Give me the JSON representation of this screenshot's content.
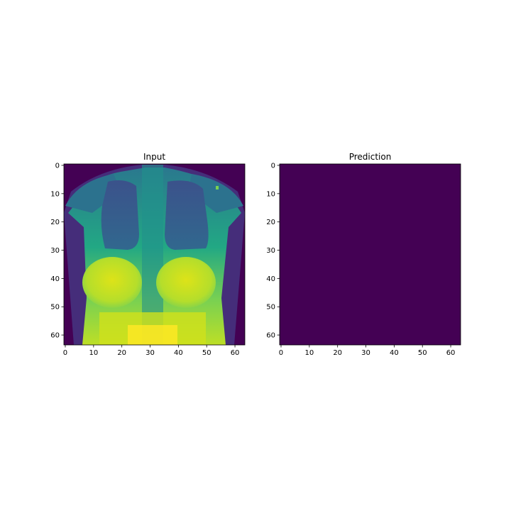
{
  "chart_data": [
    {
      "type": "heatmap",
      "title": "Input",
      "xlabel": "",
      "ylabel": "",
      "shape": [
        64,
        64
      ],
      "xlim": [
        -0.5,
        63.5
      ],
      "ylim": [
        63.5,
        -0.5
      ],
      "xticks": [
        0,
        10,
        20,
        30,
        40,
        50,
        60
      ],
      "yticks": [
        0,
        10,
        20,
        30,
        40,
        50,
        60
      ],
      "colormap": "viridis",
      "content": "chest radiograph image (64x64 pixels)"
    },
    {
      "type": "heatmap",
      "title": "Prediction",
      "xlabel": "",
      "ylabel": "",
      "shape": [
        64,
        64
      ],
      "xlim": [
        -0.5,
        63.5
      ],
      "ylim": [
        63.5,
        -0.5
      ],
      "xticks": [
        0,
        10,
        20,
        30,
        40,
        50,
        60
      ],
      "yticks": [
        0,
        10,
        20,
        30,
        40,
        50,
        60
      ],
      "colormap": "viridis",
      "fill_color": "#440154",
      "content": "uniform single value"
    }
  ]
}
